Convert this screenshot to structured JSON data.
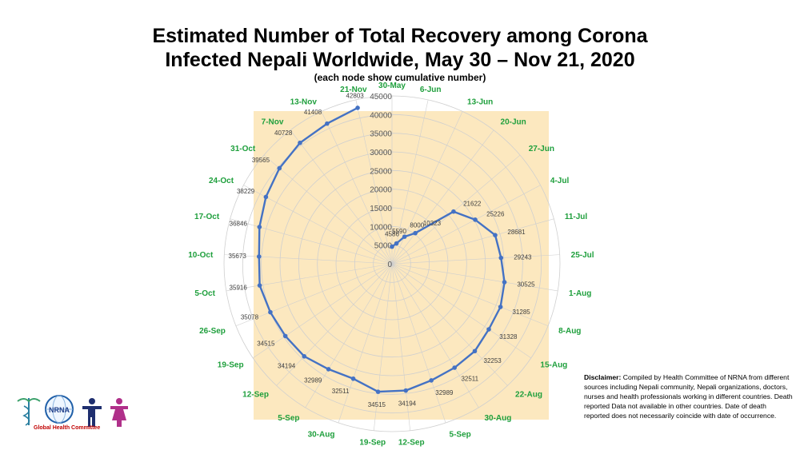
{
  "header": {
    "title_line1": "Estimated Number of Total Recovery among Corona",
    "title_line2": "Infected Nepali Worldwide, May 30 – Nov 21, 2020",
    "subtitle": "(each node show cumulative number)"
  },
  "colors": {
    "plot_background": "#fce8bf",
    "series_line": "#4472c4",
    "category_label": "#1e9f3c",
    "grid": "#cfcfcf"
  },
  "chart_data": {
    "type": "radar",
    "title": "Estimated Number of Total Recovery among Corona Infected Nepali Worldwide, May 30 – Nov 21, 2020",
    "subtitle": "(each node show cumulative number)",
    "categories": [
      "30-May",
      "6-Jun",
      "13-Jun",
      "20-Jun",
      "27-Jun",
      "4-Jul",
      "11-Jul",
      "25-Jul",
      "1-Aug",
      "8-Aug",
      "15-Aug",
      "22-Aug",
      "30-Aug",
      "5-Sep",
      "12-Sep",
      "19-Sep",
      "30-Aug",
      "5-Sep",
      "12-Sep",
      "19-Sep",
      "26-Sep",
      "5-Oct",
      "10-Oct",
      "17-Oct",
      "24-Oct",
      "31-Oct",
      "7-Nov",
      "13-Nov",
      "21-Nov"
    ],
    "data_labels": [
      "4586",
      "5590",
      "8000",
      "10323",
      "21622",
      "25226",
      "28681",
      "29243",
      "30525",
      "31285",
      "31328",
      "32253",
      "32511",
      "32989",
      "34194",
      "34515",
      "32511",
      "32989",
      "34194",
      "34515",
      "35078",
      "35916",
      "35673",
      "36846",
      "38229",
      "39565",
      "40728",
      "41408",
      "42803"
    ],
    "values": [
      4586,
      5590,
      8000,
      10323,
      21622,
      25226,
      28681,
      29243,
      30525,
      31285,
      31328,
      32253,
      32511,
      32989,
      34194,
      34515,
      32511,
      32989,
      34194,
      34515,
      35078,
      35916,
      35673,
      36846,
      38229,
      39565,
      40728,
      41408,
      42803
    ],
    "axis_ticks": [
      "0",
      "5000",
      "10000",
      "15000",
      "20000",
      "25000",
      "30000",
      "35000",
      "40000",
      "45000"
    ],
    "rlim": [
      0,
      45000
    ],
    "grid": true,
    "legend": "none"
  },
  "disclaimer": {
    "heading": "Disclaimer:",
    "text": "Compiled by Health Committee  of NRNA from different sources including Nepali community, Nepali organizations, doctors, nurses and health professionals working in different countries. Death reported Data not available in other countries. Date of death reported does not necessarily coincide with date of occurrence."
  },
  "logo": {
    "org_text": "NRNA",
    "caption": "Global Health Committee"
  }
}
